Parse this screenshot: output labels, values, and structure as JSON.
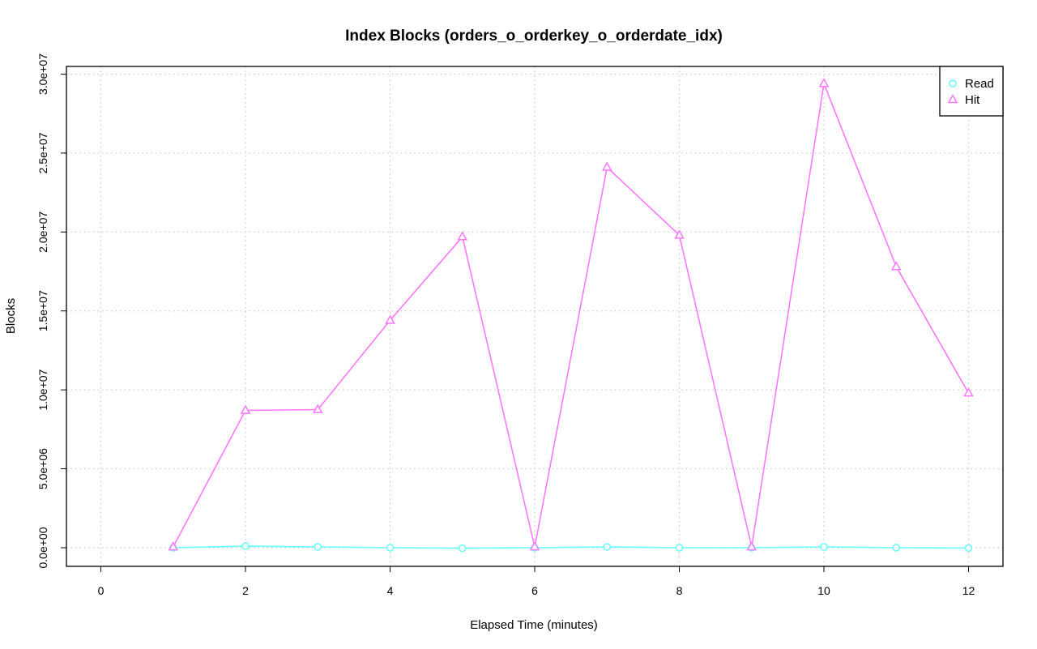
{
  "chart_data": {
    "type": "line",
    "title": "Index Blocks (orders_o_orderkey_o_orderdate_idx)",
    "xlabel": "Elapsed Time (minutes)",
    "ylabel": "Blocks",
    "xlim": [
      0,
      12
    ],
    "ylim": [
      0,
      30000000
    ],
    "x_ticks": [
      0,
      2,
      4,
      6,
      8,
      10,
      12
    ],
    "x_tick_labels": [
      "0",
      "2",
      "4",
      "6",
      "8",
      "10",
      "12"
    ],
    "y_ticks": [
      0,
      5000000,
      10000000,
      15000000,
      20000000,
      25000000,
      30000000
    ],
    "y_tick_labels": [
      "0.0e+00",
      "5.0e+06",
      "1.0e+07",
      "1.5e+07",
      "2.0e+07",
      "2.5e+07",
      "3.0e+07"
    ],
    "grid": true,
    "legend_position": "top-right",
    "x": [
      1,
      2,
      3,
      4,
      5,
      6,
      7,
      8,
      9,
      10,
      11,
      12
    ],
    "series": [
      {
        "name": "Read",
        "color": "#66ffff",
        "marker": "circle",
        "values": [
          0,
          100000,
          50000,
          0,
          -30000,
          0,
          50000,
          0,
          0,
          50000,
          0,
          -20000
        ]
      },
      {
        "name": "Hit",
        "color": "#ff77ff",
        "marker": "triangle",
        "values": [
          50000,
          8700000,
          8750000,
          14400000,
          19700000,
          50000,
          24100000,
          19800000,
          50000,
          29400000,
          17800000,
          9800000
        ]
      }
    ]
  }
}
